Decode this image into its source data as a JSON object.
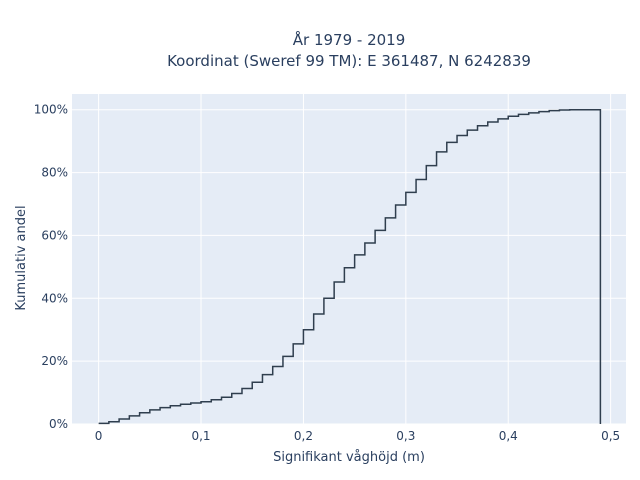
{
  "chart_data": {
    "type": "line",
    "line_shape": "step",
    "title_lines": [
      "År 1979 - 2019",
      "Koordinat (Sweref 99 TM): E 361487, N 6242839"
    ],
    "xlabel": "Signifikant våghöjd (m)",
    "ylabel": "Kumulativ andel",
    "xlim": [
      -0.026,
      0.515
    ],
    "ylim": [
      0,
      1.05
    ],
    "x_ticks": [
      0,
      0.1,
      0.2,
      0.3,
      0.4,
      0.5
    ],
    "x_tick_labels": [
      "0",
      "0,1",
      "0,2",
      "0,3",
      "0,4",
      "0,5"
    ],
    "y_ticks": [
      0,
      0.2,
      0.4,
      0.6,
      0.8,
      1.0
    ],
    "y_tick_labels": [
      "0%",
      "20%",
      "40%",
      "60%",
      "80%",
      "100%"
    ],
    "grid": true,
    "colors": {
      "plot_background": "#e5ecf6",
      "grid": "#ffffff",
      "line": "#2f3e4e",
      "text": "#2a3f5f"
    },
    "series": [
      {
        "x": [
          0,
          0.01,
          0.02,
          0.03,
          0.04,
          0.05,
          0.06,
          0.07,
          0.08,
          0.09,
          0.1,
          0.11,
          0.12,
          0.13,
          0.14,
          0.15,
          0.16,
          0.17,
          0.18,
          0.19,
          0.2,
          0.21,
          0.22,
          0.23,
          0.24,
          0.25,
          0.26,
          0.27,
          0.28,
          0.29,
          0.3,
          0.31,
          0.32,
          0.33,
          0.34,
          0.35,
          0.36,
          0.37,
          0.38,
          0.39,
          0.4,
          0.41,
          0.42,
          0.43,
          0.44,
          0.45,
          0.46,
          0.47,
          0.48,
          0.49,
          0.49
        ],
        "y": [
          0.002,
          0.007,
          0.016,
          0.026,
          0.036,
          0.045,
          0.052,
          0.058,
          0.063,
          0.067,
          0.071,
          0.077,
          0.085,
          0.097,
          0.113,
          0.133,
          0.157,
          0.183,
          0.215,
          0.255,
          0.3,
          0.35,
          0.4,
          0.452,
          0.497,
          0.538,
          0.576,
          0.616,
          0.656,
          0.697,
          0.737,
          0.778,
          0.822,
          0.866,
          0.896,
          0.918,
          0.935,
          0.949,
          0.961,
          0.971,
          0.979,
          0.985,
          0.99,
          0.994,
          0.997,
          0.999,
          1.0,
          1.0,
          1.0,
          1.0,
          0.0
        ]
      }
    ]
  }
}
